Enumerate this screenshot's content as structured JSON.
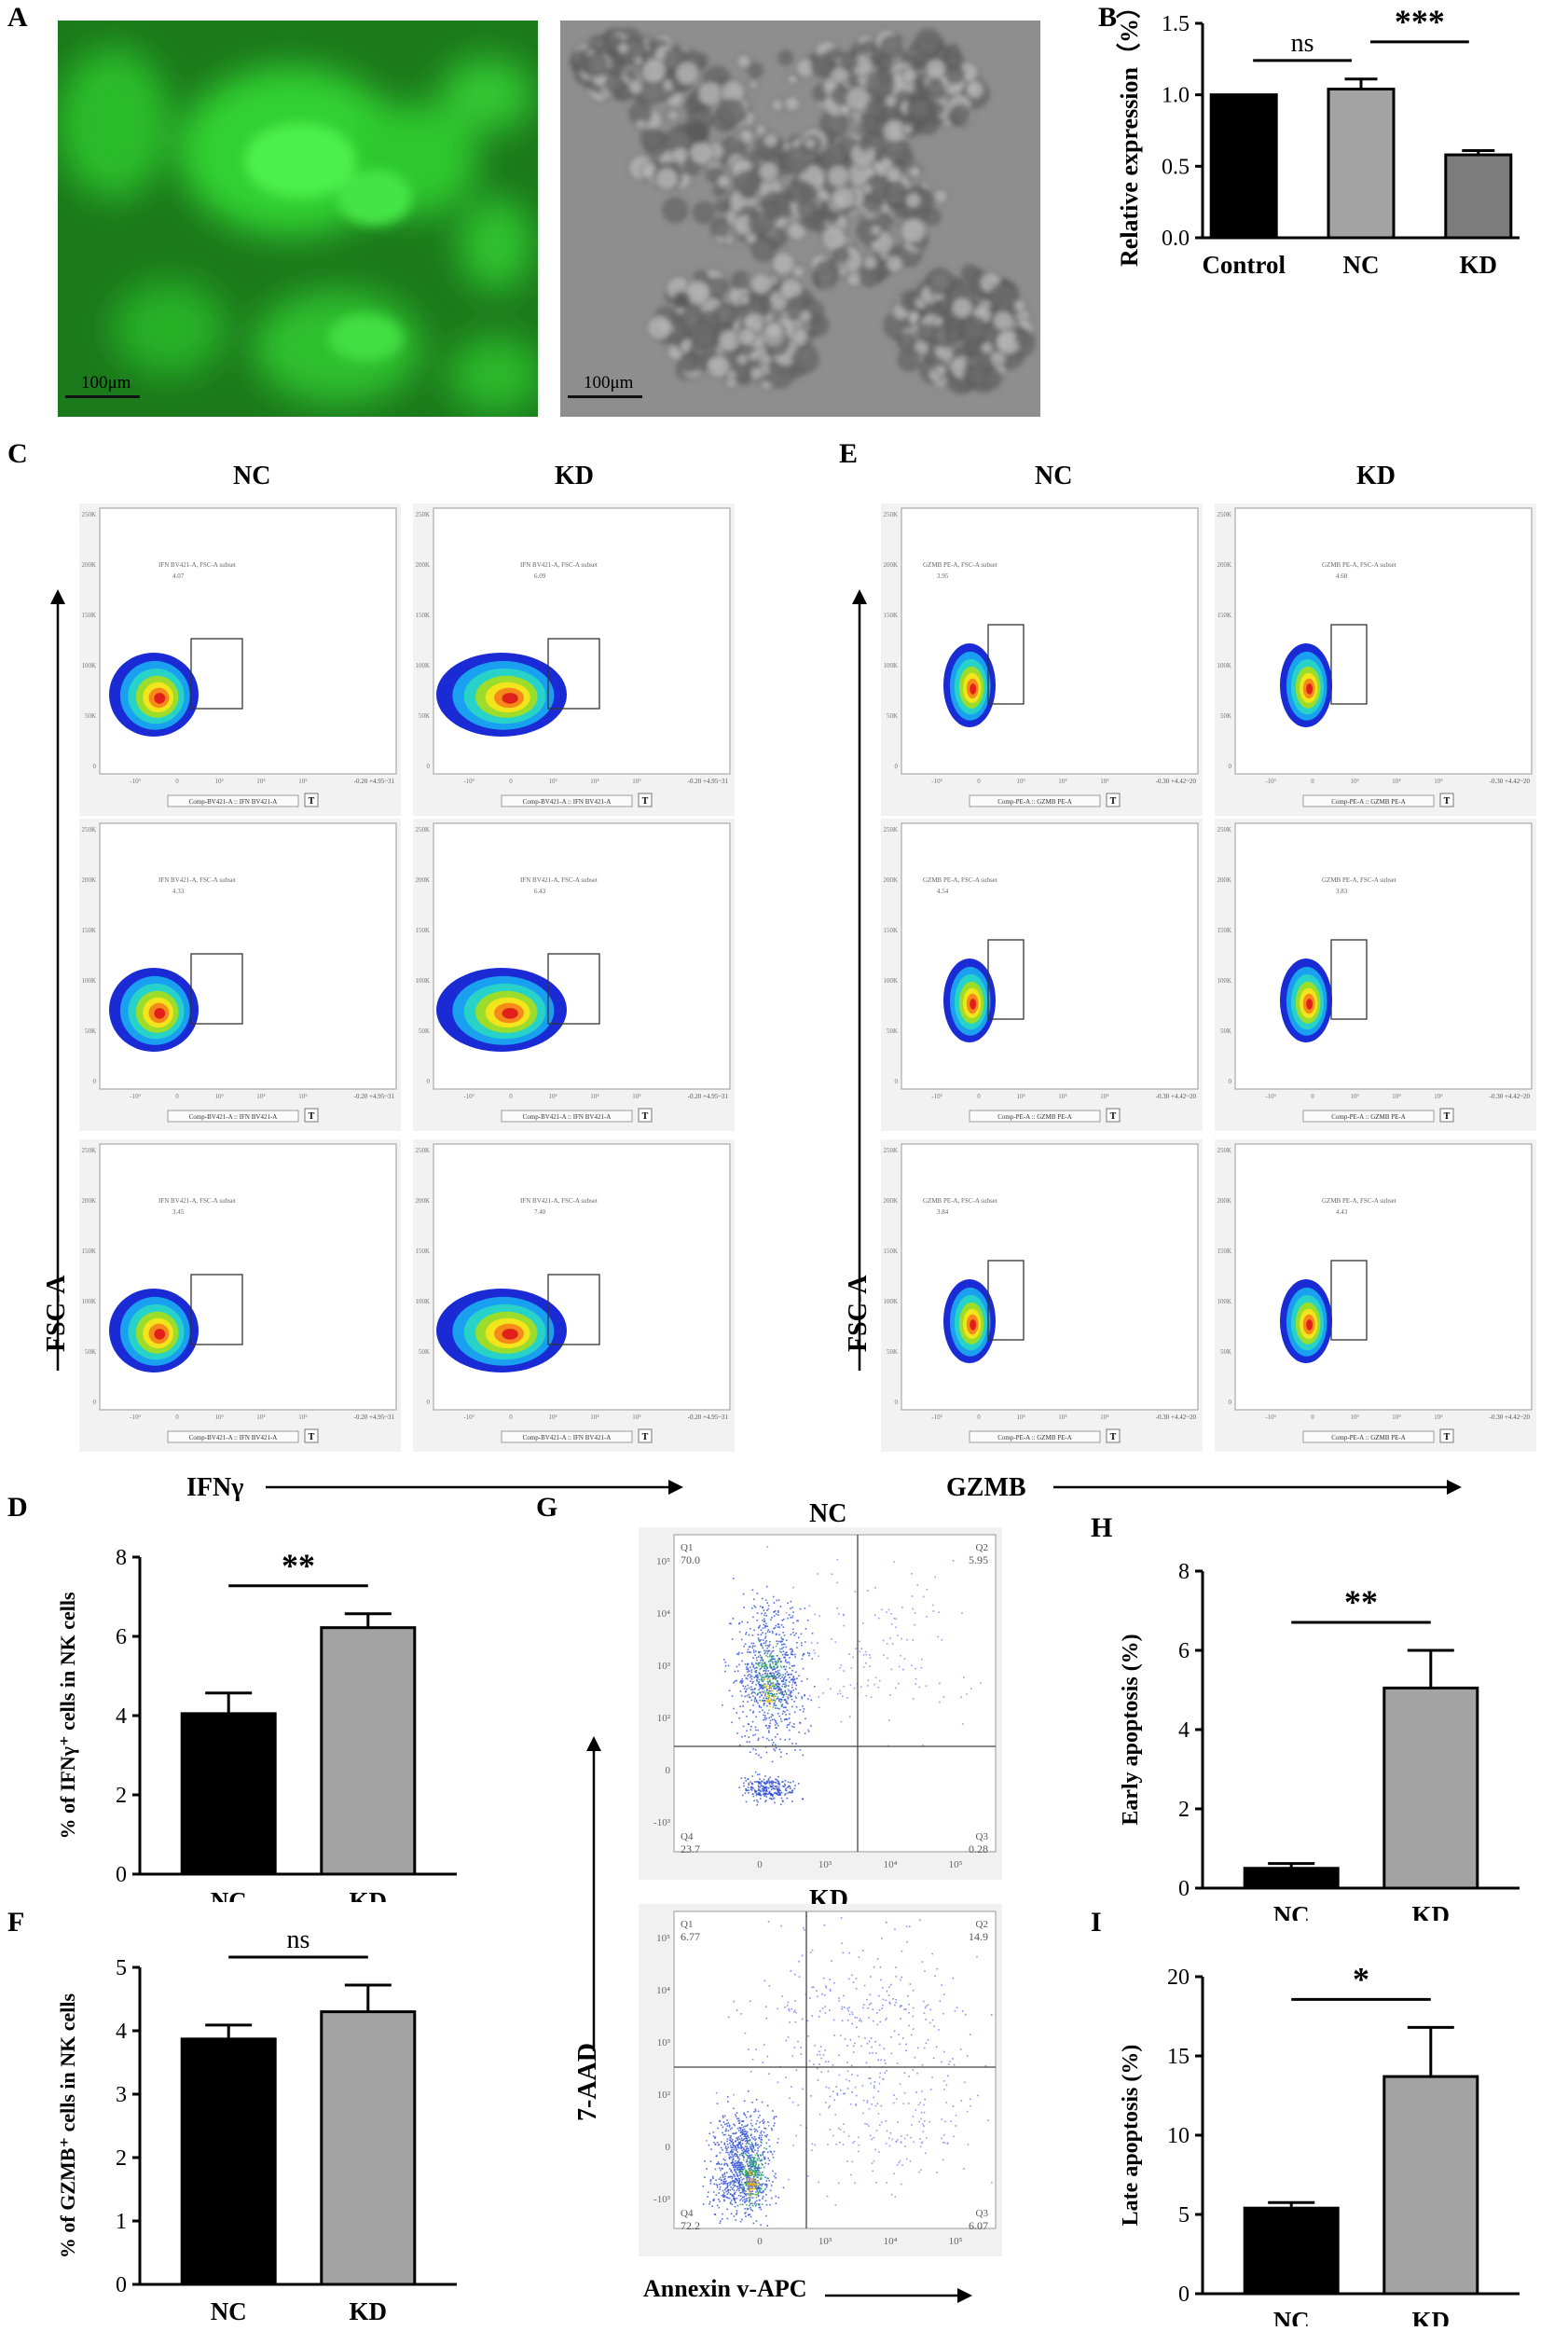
{
  "panel_labels": {
    "A": "A",
    "B": "B",
    "C": "C",
    "D": "D",
    "E": "E",
    "F": "F",
    "G": "G",
    "H": "H",
    "I": "I"
  },
  "panel_A": {
    "scale_green": "100μm",
    "scale_bright": "100μm",
    "colors": {
      "fluor": "#22c322",
      "bright": "#8d8d8d"
    }
  },
  "panel_C": {
    "col_nc": "NC",
    "col_kd": "KD",
    "ylabel": "FSC-A",
    "xlabel": "IFNγ",
    "gate_title": "IFN BV421-A, FSC-A subset",
    "axis_caption": "Comp-BV421-A :: IFN BV421-A",
    "range_text": "-0.20 +4.95~31",
    "gate_values": [
      [
        "4.07",
        "6.09"
      ],
      [
        "4.33",
        "6.43"
      ],
      [
        "3.45",
        "7.40"
      ]
    ]
  },
  "panel_E": {
    "col_nc": "NC",
    "col_kd": "KD",
    "ylabel": "FSC-A",
    "xlabel": "GZMB",
    "gate_title": "GZMB PE-A, FSC-A subset",
    "axis_caption": "Comp-PE-A :: GZMB PE-A",
    "range_text": "-0.30 +4.42~20",
    "gate_values": [
      [
        "3.95",
        "4.68"
      ],
      [
        "4.54",
        "3.83"
      ],
      [
        "3.84",
        "4.43"
      ]
    ]
  },
  "panel_G": {
    "title_nc": "NC",
    "title_kd": "KD",
    "ylabel": "7-AAD",
    "xlabel": "Annexin v-APC",
    "quad_names": [
      "Q1",
      "Q2",
      "Q3",
      "Q4"
    ],
    "nc_quads": {
      "Q1": "70.0",
      "Q2": "5.95",
      "Q3": "0.28",
      "Q4": "23.7"
    },
    "kd_quads": {
      "Q1": "6.77",
      "Q2": "14.9",
      "Q3": "6.07",
      "Q4": "72.2"
    }
  },
  "chart_data": [
    {
      "id": "B",
      "type": "bar",
      "categories": [
        "Control",
        "NC",
        "KD"
      ],
      "values": [
        1.0,
        1.04,
        0.58
      ],
      "errors": [
        0,
        0.07,
        0.03
      ],
      "ylabel": "Relative expression（%）",
      "ylim": [
        0,
        1.5
      ],
      "yticks": [
        "0.0",
        "0.5",
        "1.0",
        "1.5"
      ],
      "colors": [
        "#000000",
        "#a3a3a3",
        "#7c7c7c"
      ],
      "annotations": [
        {
          "from": 0,
          "to": 1,
          "text": "ns"
        },
        {
          "from": 1,
          "to": 2,
          "text": "***"
        }
      ]
    },
    {
      "id": "D",
      "type": "bar",
      "categories": [
        "NC",
        "KD"
      ],
      "values": [
        4.05,
        6.22
      ],
      "errors": [
        0.52,
        0.35
      ],
      "ylabel": "% of IFNγ⁺ cells in NK cells",
      "ylim": [
        0,
        8
      ],
      "yticks": [
        "0",
        "2",
        "4",
        "6",
        "8"
      ],
      "colors": [
        "#000000",
        "#a3a3a3"
      ],
      "annotations": [
        {
          "from": 0,
          "to": 1,
          "text": "**"
        }
      ]
    },
    {
      "id": "F",
      "type": "bar",
      "categories": [
        "NC",
        "KD"
      ],
      "values": [
        3.87,
        4.3
      ],
      "errors": [
        0.22,
        0.42
      ],
      "ylabel": "% of GZMB⁺ cells in NK cells",
      "ylim": [
        0,
        5
      ],
      "yticks": [
        "0",
        "1",
        "2",
        "3",
        "4",
        "5"
      ],
      "colors": [
        "#000000",
        "#a3a3a3"
      ],
      "annotations": [
        {
          "from": 0,
          "to": 1,
          "text": "ns"
        }
      ]
    },
    {
      "id": "H",
      "type": "bar",
      "categories": [
        "NC",
        "KD"
      ],
      "values": [
        0.5,
        5.05
      ],
      "errors": [
        0.12,
        0.95
      ],
      "ylabel": "Early apoptosis (%)",
      "ylim": [
        0,
        8
      ],
      "yticks": [
        "0",
        "2",
        "4",
        "6",
        "8"
      ],
      "colors": [
        "#000000",
        "#a3a3a3"
      ],
      "annotations": [
        {
          "from": 0,
          "to": 1,
          "text": "**"
        }
      ]
    },
    {
      "id": "I",
      "type": "bar",
      "categories": [
        "NC",
        "KD"
      ],
      "values": [
        5.4,
        13.7
      ],
      "errors": [
        0.35,
        3.1
      ],
      "ylabel": "Late apoptosis (%)",
      "ylim": [
        0,
        20
      ],
      "yticks": [
        "0",
        "5",
        "10",
        "15",
        "20"
      ],
      "colors": [
        "#000000",
        "#a3a3a3"
      ],
      "annotations": [
        {
          "from": 0,
          "to": 1,
          "text": "*"
        }
      ]
    }
  ]
}
